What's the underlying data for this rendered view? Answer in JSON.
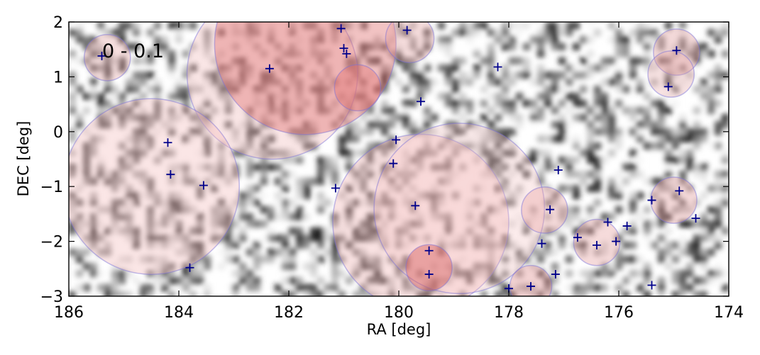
{
  "chart_data": {
    "type": "scatter",
    "annotation": "0 - 0.1",
    "xlabel": "RA [deg]",
    "ylabel": "DEC [deg]",
    "xlim": [
      186,
      174
    ],
    "ylim": [
      -3,
      2
    ],
    "xticks": [
      186,
      184,
      182,
      180,
      178,
      176,
      174
    ],
    "xtick_labels": [
      "186",
      "184",
      "182",
      "180",
      "178",
      "176",
      "174"
    ],
    "yticks": [
      2,
      1,
      0,
      -1,
      -2,
      -3
    ],
    "ytick_labels": [
      "2",
      "1",
      "0",
      "−1",
      "−2",
      "−3"
    ],
    "grid": false,
    "background": "grayscale density map",
    "circles": [
      {
        "ra": 185.3,
        "dec": 1.35,
        "r": 0.42,
        "fill": "#e6a3a3",
        "opacity": 0.35
      },
      {
        "ra": 182.3,
        "dec": 1.05,
        "r": 1.55,
        "fill": "#f2b8b8",
        "opacity": 0.35
      },
      {
        "ra": 181.7,
        "dec": 1.6,
        "r": 1.65,
        "fill": "#e07070",
        "opacity": 0.42
      },
      {
        "ra": 180.75,
        "dec": 0.8,
        "r": 0.42,
        "fill": "#e07070",
        "opacity": 0.4
      },
      {
        "ra": 179.8,
        "dec": 1.7,
        "r": 0.44,
        "fill": "#e8a0a0",
        "opacity": 0.35
      },
      {
        "ra": 184.5,
        "dec": -1.0,
        "r": 1.6,
        "fill": "#f5bcbc",
        "opacity": 0.38
      },
      {
        "ra": 179.6,
        "dec": -1.65,
        "r": 1.6,
        "fill": "#f2b0b0",
        "opacity": 0.35
      },
      {
        "ra": 178.9,
        "dec": -1.4,
        "r": 1.55,
        "fill": "#f5c4c4",
        "opacity": 0.32
      },
      {
        "ra": 179.45,
        "dec": -2.48,
        "r": 0.42,
        "fill": "#d86060",
        "opacity": 0.45
      },
      {
        "ra": 177.35,
        "dec": -1.43,
        "r": 0.42,
        "fill": "#e8a0a0",
        "opacity": 0.38
      },
      {
        "ra": 177.6,
        "dec": -2.82,
        "r": 0.38,
        "fill": "#e09090",
        "opacity": 0.4
      },
      {
        "ra": 176.4,
        "dec": -2.02,
        "r": 0.42,
        "fill": "#e8a0a0",
        "opacity": 0.38
      },
      {
        "ra": 175.0,
        "dec": -1.25,
        "r": 0.42,
        "fill": "#e8a0a0",
        "opacity": 0.38
      },
      {
        "ra": 174.95,
        "dec": 1.45,
        "r": 0.42,
        "fill": "#e09c9c",
        "opacity": 0.38
      },
      {
        "ra": 175.05,
        "dec": 1.05,
        "r": 0.42,
        "fill": "#e8a8a8",
        "opacity": 0.33
      }
    ],
    "points": [
      {
        "ra": 185.4,
        "dec": 1.38
      },
      {
        "ra": 181.05,
        "dec": 1.88
      },
      {
        "ra": 181.0,
        "dec": 1.52
      },
      {
        "ra": 180.95,
        "dec": 1.42
      },
      {
        "ra": 179.85,
        "dec": 1.85
      },
      {
        "ra": 182.35,
        "dec": 1.15
      },
      {
        "ra": 178.2,
        "dec": 1.18
      },
      {
        "ra": 174.95,
        "dec": 1.48
      },
      {
        "ra": 175.1,
        "dec": 0.82
      },
      {
        "ra": 179.6,
        "dec": 0.55
      },
      {
        "ra": 184.2,
        "dec": -0.2
      },
      {
        "ra": 180.05,
        "dec": -0.15
      },
      {
        "ra": 180.1,
        "dec": -0.58
      },
      {
        "ra": 184.15,
        "dec": -0.78
      },
      {
        "ra": 183.55,
        "dec": -0.98
      },
      {
        "ra": 181.15,
        "dec": -1.03
      },
      {
        "ra": 177.1,
        "dec": -0.7
      },
      {
        "ra": 174.9,
        "dec": -1.08
      },
      {
        "ra": 175.4,
        "dec": -1.25
      },
      {
        "ra": 179.7,
        "dec": -1.35
      },
      {
        "ra": 177.25,
        "dec": -1.42
      },
      {
        "ra": 174.6,
        "dec": -1.58
      },
      {
        "ra": 176.2,
        "dec": -1.65
      },
      {
        "ra": 175.85,
        "dec": -1.72
      },
      {
        "ra": 176.75,
        "dec": -1.93
      },
      {
        "ra": 176.05,
        "dec": -2.0
      },
      {
        "ra": 176.4,
        "dec": -2.07
      },
      {
        "ra": 177.4,
        "dec": -2.04
      },
      {
        "ra": 179.45,
        "dec": -2.17
      },
      {
        "ra": 183.8,
        "dec": -2.48
      },
      {
        "ra": 179.45,
        "dec": -2.6
      },
      {
        "ra": 177.15,
        "dec": -2.6
      },
      {
        "ra": 178.0,
        "dec": -2.86
      },
      {
        "ra": 177.6,
        "dec": -2.82
      },
      {
        "ra": 175.4,
        "dec": -2.8
      }
    ],
    "point_color": "#00008b"
  }
}
